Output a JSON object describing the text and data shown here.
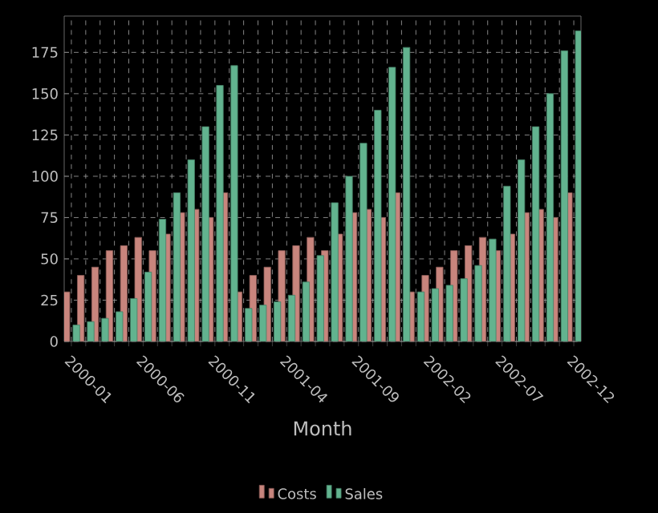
{
  "chart_data": {
    "type": "bar",
    "xlabel": "Month",
    "categories": [
      "2000-01",
      null,
      null,
      null,
      null,
      "2000-06",
      null,
      null,
      null,
      null,
      "2000-11",
      null,
      null,
      null,
      null,
      "2001-04",
      null,
      null,
      null,
      null,
      "2001-09",
      null,
      null,
      null,
      null,
      "2002-02",
      null,
      null,
      null,
      null,
      "2002-07",
      null,
      null,
      null,
      null,
      "2002-12"
    ],
    "series": [
      {
        "name": "Costs",
        "color": "#c8857d",
        "values": [
          30,
          40,
          45,
          55,
          58,
          63,
          55,
          65,
          78,
          80,
          75,
          90,
          30,
          40,
          45,
          55,
          58,
          63,
          55,
          65,
          78,
          80,
          75,
          90,
          30,
          40,
          45,
          55,
          58,
          63,
          55,
          65,
          78,
          80,
          75,
          90
        ]
      },
      {
        "name": "Sales",
        "color": "#62b38f",
        "values": [
          10,
          12,
          14,
          18,
          26,
          42,
          74,
          90,
          110,
          130,
          155,
          167,
          20,
          22,
          24,
          28,
          36,
          52,
          84,
          100,
          120,
          140,
          166,
          178,
          30,
          32,
          34,
          38,
          46,
          62,
          94,
          110,
          130,
          150,
          176,
          188
        ]
      }
    ],
    "ylim": [
      0,
      197
    ],
    "yticks": [
      0,
      25,
      50,
      75,
      100,
      125,
      150,
      175
    ],
    "grid": true,
    "legend": "bottom"
  }
}
